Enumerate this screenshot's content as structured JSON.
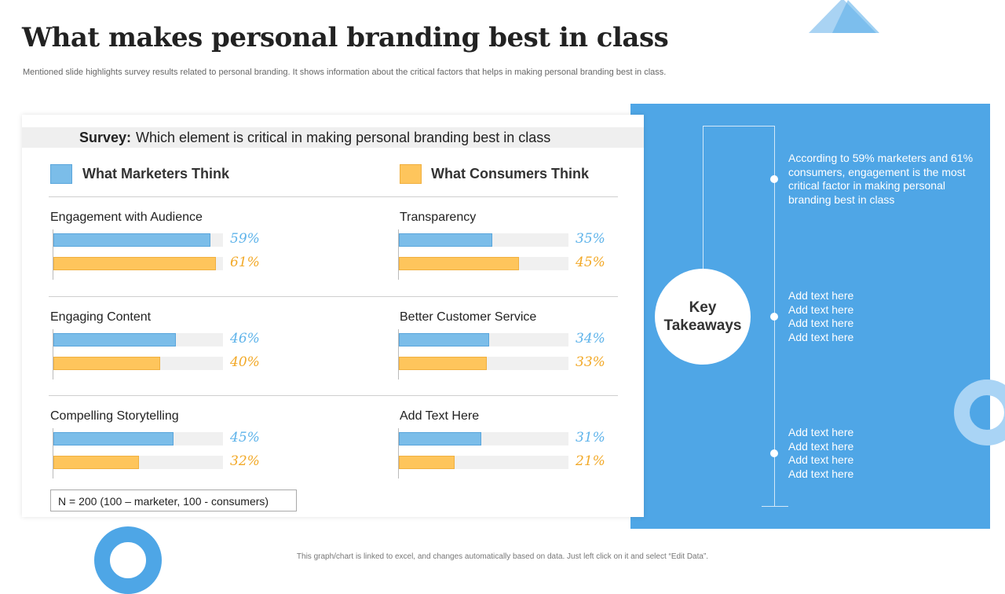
{
  "slide": {
    "title": "What makes personal branding best in class",
    "subtitle": "Mentioned slide highlights survey results related to personal branding. It shows information about the critical factors that helps in making personal branding best in class.",
    "footer": "This graph/chart is linked to excel, and changes automatically based on data. Just left click on it and select “Edit Data”."
  },
  "survey": {
    "label": "Survey:",
    "question": "Which element is critical in making personal branding best in class"
  },
  "legend": {
    "marketers": "What Marketers Think",
    "consumers": "What Consumers Think"
  },
  "note": "N = 200 (100 – marketer, 100 - consumers)",
  "takeaways": {
    "center_label": "Key Takeaways",
    "items": [
      "According to 59% marketers and 61% consumers, engagement is the most critical factor in making personal branding best in class",
      "Add text here\nAdd text here\nAdd text here\nAdd text here",
      "Add text here\nAdd text here\nAdd text here\nAdd text here"
    ]
  },
  "colors": {
    "marketers": "#7bbde9",
    "consumers": "#fec55c",
    "panel_blue": "#4fa6e6"
  },
  "chart_data": {
    "type": "bar",
    "orientation": "horizontal",
    "xlim": [
      0,
      100
    ],
    "series": [
      {
        "name": "What Marketers Think",
        "color": "#7bbde9"
      },
      {
        "name": "What Consumers Think",
        "color": "#fec55c"
      }
    ],
    "categories": [
      {
        "name": "Engagement with Audience",
        "values": [
          59,
          61
        ],
        "labels": [
          "59%",
          "61%"
        ]
      },
      {
        "name": "Transparency",
        "values": [
          35,
          45
        ],
        "labels": [
          "35%",
          "45%"
        ]
      },
      {
        "name": "Engaging Content",
        "values": [
          46,
          40
        ],
        "labels": [
          "46%",
          "40%"
        ]
      },
      {
        "name": "Better Customer Service",
        "values": [
          34,
          33
        ],
        "labels": [
          "34%",
          "33%"
        ]
      },
      {
        "name": "Compelling Storytelling",
        "values": [
          45,
          32
        ],
        "labels": [
          "45%",
          "32%"
        ]
      },
      {
        "name": "Add Text Here",
        "values": [
          31,
          21
        ],
        "labels": [
          "31%",
          "21%"
        ]
      }
    ]
  }
}
